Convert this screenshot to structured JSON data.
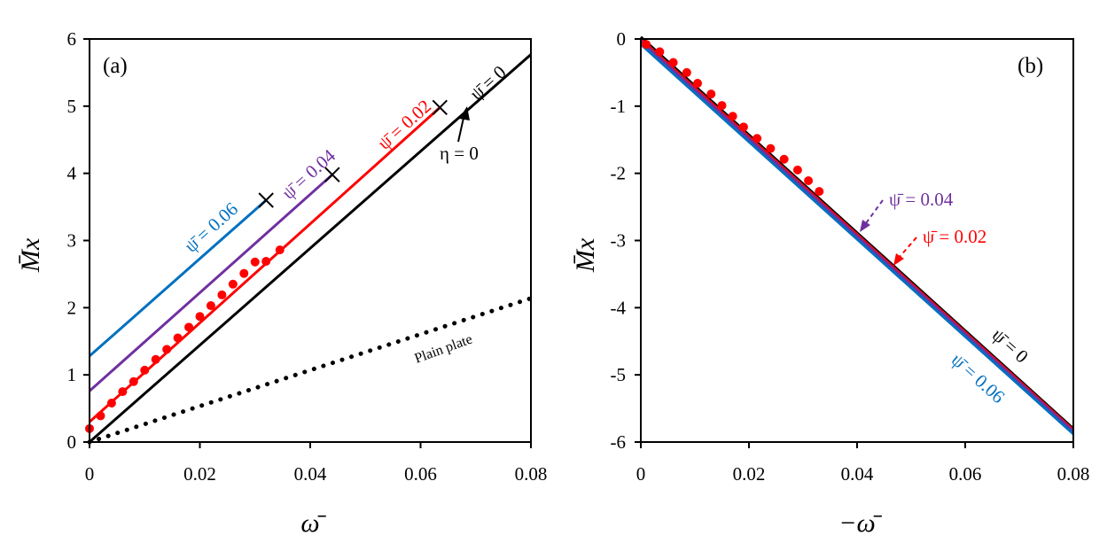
{
  "chart_data": [
    {
      "type": "line",
      "panel_label": "(a)",
      "xlabel": "ω̄",
      "ylabel": "M̄x",
      "xlim": [
        0,
        0.08
      ],
      "ylim": [
        0,
        6
      ],
      "xticks": [
        0,
        0.02,
        0.04,
        0.06,
        0.08
      ],
      "xtick_labels": [
        "0",
        "0.02",
        "0.04",
        "0.06",
        "0.08"
      ],
      "yticks": [
        0,
        1,
        2,
        3,
        4,
        5,
        6
      ],
      "ytick_labels": [
        "0",
        "1",
        "2",
        "3",
        "4",
        "5",
        "6"
      ],
      "series": [
        {
          "name": "psi0",
          "label": "ψ̄ = 0",
          "color": "#000000",
          "style": "solid",
          "x": [
            0,
            0.08
          ],
          "y": [
            0,
            5.77
          ]
        },
        {
          "name": "psi002",
          "label": "ψ̄ = 0.02",
          "color": "#ff0000",
          "style": "solid",
          "x": [
            0,
            0.0635
          ],
          "y": [
            0.3,
            4.98
          ]
        },
        {
          "name": "psi004",
          "label": "ψ̄ = 0.04",
          "color": "#7030a0",
          "style": "solid",
          "x": [
            0,
            0.044
          ],
          "y": [
            0.76,
            3.98
          ]
        },
        {
          "name": "psi006",
          "label": "ψ̄ = 0.06",
          "color": "#0070c0",
          "style": "solid",
          "x": [
            0,
            0.032
          ],
          "y": [
            1.28,
            3.6
          ]
        },
        {
          "name": "plain",
          "label": "Plain plate",
          "color": "#000000",
          "style": "dotted",
          "x": [
            0,
            0.08
          ],
          "y": [
            0,
            2.14
          ]
        }
      ],
      "markers": {
        "color": "#ff0000",
        "x": [
          0,
          0.002,
          0.004,
          0.006,
          0.008,
          0.01,
          0.012,
          0.014,
          0.016,
          0.018,
          0.02,
          0.022,
          0.024,
          0.026,
          0.028,
          0.03,
          0.032,
          0.0345
        ],
        "y": [
          0.2,
          0.39,
          0.58,
          0.75,
          0.9,
          1.07,
          1.23,
          1.38,
          1.55,
          1.71,
          1.87,
          2.03,
          2.19,
          2.35,
          2.51,
          2.68,
          2.69,
          2.86
        ]
      },
      "end_points": [
        {
          "x": 0.0635,
          "y": 4.98
        },
        {
          "x": 0.044,
          "y": 3.98
        },
        {
          "x": 0.032,
          "y": 3.6
        }
      ],
      "annotation": {
        "text": "η = 0",
        "arrow_to": [
          0.068,
          4.98
        ]
      }
    },
    {
      "type": "line",
      "panel_label": "(b)",
      "xlabel": "−ω̄",
      "ylabel": "M̄x",
      "xlim": [
        0,
        0.08
      ],
      "ylim": [
        -6,
        0
      ],
      "xticks": [
        0,
        0.02,
        0.04,
        0.06,
        0.08
      ],
      "xtick_labels": [
        "0",
        "0.02",
        "0.04",
        "0.06",
        "0.08"
      ],
      "yticks": [
        0,
        -1,
        -2,
        -3,
        -4,
        -5,
        -6
      ],
      "ytick_labels": [
        "0",
        "-1",
        "-2",
        "-3",
        "-4",
        "-5",
        "-6"
      ],
      "series": [
        {
          "name": "psi0",
          "label": "ψ̄ = 0",
          "color": "#000000",
          "style": "solid",
          "x": [
            0,
            0.08
          ],
          "y": [
            0.03,
            -5.8
          ]
        },
        {
          "name": "psi002",
          "label": "ψ̄ = 0.02",
          "color": "#ff0000",
          "style": "solid",
          "x": [
            0,
            0.08
          ],
          "y": [
            0.0,
            -5.82
          ]
        },
        {
          "name": "psi004",
          "label": "ψ̄ = 0.04",
          "color": "#7030a0",
          "style": "solid",
          "x": [
            0,
            0.08
          ],
          "y": [
            -0.03,
            -5.84
          ]
        },
        {
          "name": "psi006",
          "label": "ψ̄ = 0.06",
          "color": "#0070c0",
          "style": "solid",
          "x": [
            0,
            0.08
          ],
          "y": [
            -0.08,
            -5.88
          ]
        }
      ],
      "markers": {
        "color": "#ff0000",
        "x": [
          0.001,
          0.0035,
          0.006,
          0.0085,
          0.0105,
          0.013,
          0.015,
          0.017,
          0.019,
          0.0215,
          0.024,
          0.0265,
          0.029,
          0.031,
          0.033
        ],
        "y": [
          -0.08,
          -0.19,
          -0.35,
          -0.5,
          -0.66,
          -0.82,
          -0.99,
          -1.15,
          -1.31,
          -1.48,
          -1.63,
          -1.79,
          -1.95,
          -2.11,
          -2.27
        ]
      },
      "annotations": [
        {
          "text": "ψ̄ = 0.04",
          "color": "#7030a0",
          "arrow_to": [
            0.04,
            -2.85
          ]
        },
        {
          "text": "ψ̄ = 0.02",
          "color": "#ff0000",
          "arrow_to": [
            0.0465,
            -3.3
          ]
        }
      ]
    }
  ]
}
